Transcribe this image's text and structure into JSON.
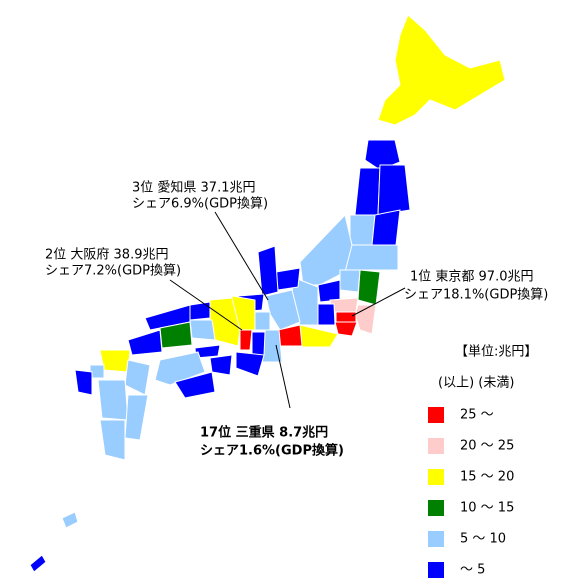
{
  "map": {
    "annotations": [
      {
        "line1": "3位 愛知県 37.1兆円",
        "line2": "シェア6.9%(GDP換算)"
      },
      {
        "line1": "2位 大阪府 38.9兆円",
        "line2": "シェア7.2%(GDP換算)"
      },
      {
        "line1": "1位 東京都 97.0兆円",
        "line2": "シェア18.1%(GDP換算)"
      },
      {
        "line1": "17位 三重県 8.7兆円",
        "line2": "シェア1.6%(GDP換算)"
      }
    ],
    "legend": {
      "title": "【単位:兆円】",
      "subtitle": "(以上) (未満)",
      "items": [
        {
          "label": "25 ～",
          "color": "#ff0000"
        },
        {
          "label": "20 ～ 25",
          "color": "#ffcccc"
        },
        {
          "label": "15 ～ 20",
          "color": "#ffff00"
        },
        {
          "label": "10 ～ 15",
          "color": "#008000"
        },
        {
          "label": "5 ～ 10",
          "color": "#99ccff"
        },
        {
          "label": "～ 5",
          "color": "#0000ff"
        }
      ]
    }
  }
}
